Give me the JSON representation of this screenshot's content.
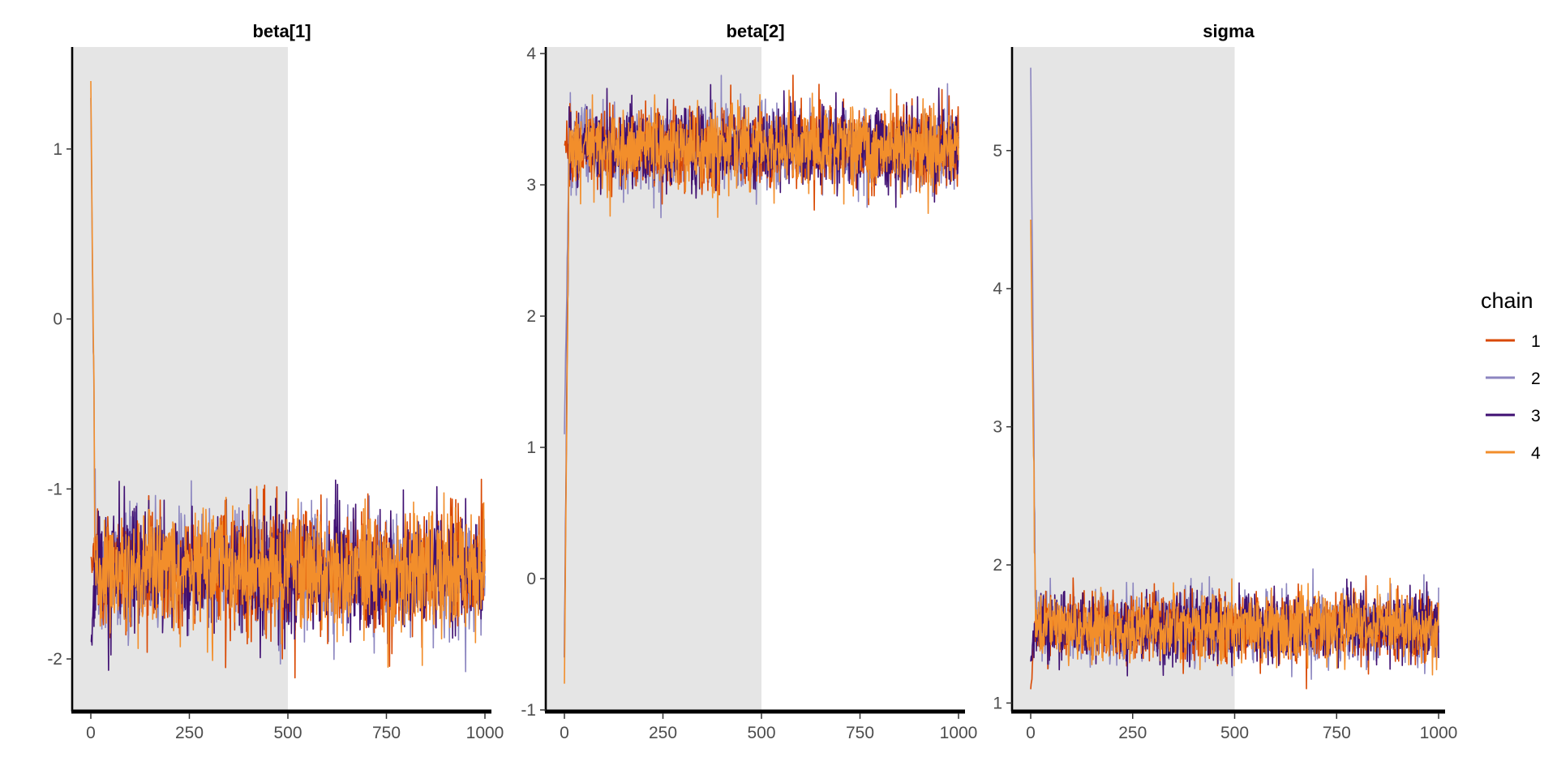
{
  "chart_data": {
    "type": "line",
    "x_range": [
      0,
      1000
    ],
    "warmup_end": 500,
    "x_ticks": [
      0,
      250,
      500,
      750,
      1000
    ],
    "x_tick_labels": [
      "0",
      "250",
      "500",
      "750",
      "1000"
    ],
    "legend": {
      "title": "chain",
      "placement": "right",
      "entries": [
        {
          "label": "1",
          "color": "#d94801"
        },
        {
          "label": "2",
          "color": "#8c86c0"
        },
        {
          "label": "3",
          "color": "#3f0f72"
        },
        {
          "label": "4",
          "color": "#f28e2b"
        }
      ]
    },
    "panels": [
      {
        "title": "beta[1]",
        "ylim": [
          -2.3,
          1.6
        ],
        "y_ticks": [
          -2,
          -1,
          0,
          1
        ],
        "y_tick_labels": [
          "-2",
          "-1",
          "0",
          "1"
        ],
        "start_values": [
          -1.4,
          1.3,
          -1.9,
          1.4
        ],
        "converged_mean": -1.48,
        "converged_spread": 0.17,
        "min_value": -2.15,
        "max_value": 1.42
      },
      {
        "title": "beta[2]",
        "ylim": [
          -1.0,
          4.05
        ],
        "y_ticks": [
          -1,
          0,
          1,
          2,
          3,
          4
        ],
        "y_tick_labels": [
          "-1",
          "0",
          "1",
          "2",
          "3",
          "4"
        ],
        "start_values": [
          3.3,
          1.1,
          -0.6,
          -0.8
        ],
        "converged_mean": 3.28,
        "converged_spread": 0.15,
        "min_value": -0.8,
        "max_value": 3.85
      },
      {
        "title": "sigma",
        "ylim": [
          0.95,
          5.75
        ],
        "y_ticks": [
          1,
          2,
          3,
          4,
          5
        ],
        "y_tick_labels": [
          "1",
          "2",
          "3",
          "4",
          "5"
        ],
        "start_values": [
          1.1,
          5.6,
          1.3,
          4.5
        ],
        "converged_mean": 1.55,
        "converged_spread": 0.12,
        "min_value": 1.1,
        "max_value": 5.6
      }
    ]
  }
}
